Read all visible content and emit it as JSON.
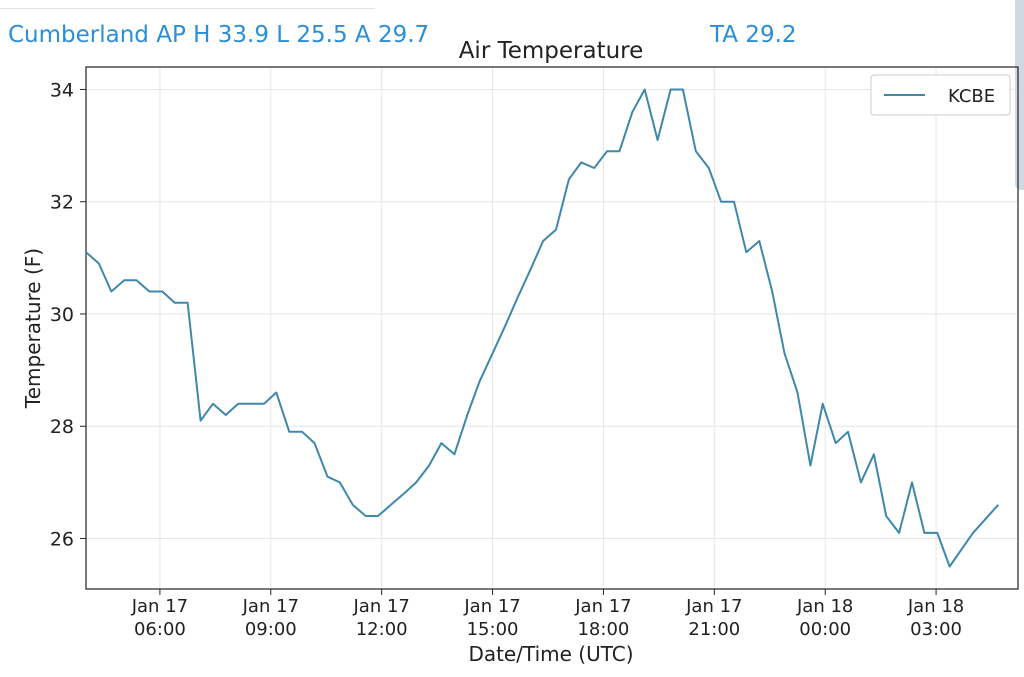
{
  "header": {
    "station_stats": "Cumberland AP H 33.9 L 25.5 A 29.7",
    "average_label": "TA 29.2"
  },
  "colors": {
    "header_text": "#2a8ed8",
    "series_line": "#3f88aa"
  },
  "chart_data": {
    "type": "line",
    "title": "Air Temperature",
    "xlabel": "Date/Time (UTC)",
    "ylabel": "Temperature (F)",
    "x_unit": "time (UTC)",
    "xlim": [
      "Jan 17 04:00",
      "Jan 18 05:13"
    ],
    "ylim": [
      25.1,
      34.4
    ],
    "yticks": [
      26,
      28,
      30,
      32,
      34
    ],
    "xticks": [
      {
        "t": "Jan 17 06:00",
        "line1": "Jan 17",
        "line2": "06:00"
      },
      {
        "t": "Jan 17 09:00",
        "line1": "Jan 17",
        "line2": "09:00"
      },
      {
        "t": "Jan 17 12:00",
        "line1": "Jan 17",
        "line2": "12:00"
      },
      {
        "t": "Jan 17 15:00",
        "line1": "Jan 17",
        "line2": "15:00"
      },
      {
        "t": "Jan 17 18:00",
        "line1": "Jan 17",
        "line2": "18:00"
      },
      {
        "t": "Jan 17 21:00",
        "line1": "Jan 17",
        "line2": "21:00"
      },
      {
        "t": "Jan 18 00:00",
        "line1": "Jan 18",
        "line2": "00:00"
      },
      {
        "t": "Jan 18 03:00",
        "line1": "Jan 18",
        "line2": "03:00"
      }
    ],
    "grid": true,
    "legend_position": "top-right",
    "series": [
      {
        "name": "KCBE",
        "color": "#3f88aa",
        "points": [
          [
            "Jan 17 04:00",
            31.1
          ],
          [
            "Jan 17 04:21",
            30.9
          ],
          [
            "Jan 17 04:41",
            30.4
          ],
          [
            "Jan 17 05:02",
            30.6
          ],
          [
            "Jan 17 05:22",
            30.6
          ],
          [
            "Jan 17 05:43",
            30.4
          ],
          [
            "Jan 17 06:04",
            30.4
          ],
          [
            "Jan 17 06:24",
            30.2
          ],
          [
            "Jan 17 06:45",
            30.2
          ],
          [
            "Jan 17 07:06",
            28.1
          ],
          [
            "Jan 17 07:26",
            28.4
          ],
          [
            "Jan 17 07:47",
            28.2
          ],
          [
            "Jan 17 08:07",
            28.4
          ],
          [
            "Jan 17 08:28",
            28.4
          ],
          [
            "Jan 17 08:49",
            28.4
          ],
          [
            "Jan 17 09:09",
            28.6
          ],
          [
            "Jan 17 09:30",
            27.9
          ],
          [
            "Jan 17 09:51",
            27.9
          ],
          [
            "Jan 17 10:11",
            27.7
          ],
          [
            "Jan 17 10:32",
            27.1
          ],
          [
            "Jan 17 10:52",
            27.0
          ],
          [
            "Jan 17 11:13",
            26.6
          ],
          [
            "Jan 17 11:34",
            26.4
          ],
          [
            "Jan 17 11:54",
            26.4
          ],
          [
            "Jan 17 12:15",
            26.6
          ],
          [
            "Jan 17 12:36",
            26.8
          ],
          [
            "Jan 17 12:56",
            27.0
          ],
          [
            "Jan 17 13:17",
            27.3
          ],
          [
            "Jan 17 13:37",
            27.7
          ],
          [
            "Jan 17 13:58",
            27.5
          ],
          [
            "Jan 17 14:19",
            28.2
          ],
          [
            "Jan 17 14:39",
            28.8
          ],
          [
            "Jan 17 15:00",
            29.3
          ],
          [
            "Jan 17 15:21",
            29.8
          ],
          [
            "Jan 17 15:41",
            30.3
          ],
          [
            "Jan 17 16:02",
            30.8
          ],
          [
            "Jan 17 16:22",
            31.3
          ],
          [
            "Jan 17 16:43",
            31.5
          ],
          [
            "Jan 17 17:04",
            32.4
          ],
          [
            "Jan 17 17:24",
            32.7
          ],
          [
            "Jan 17 17:45",
            32.6
          ],
          [
            "Jan 17 18:06",
            32.9
          ],
          [
            "Jan 17 18:26",
            32.9
          ],
          [
            "Jan 17 18:47",
            33.6
          ],
          [
            "Jan 17 19:07",
            34.0
          ],
          [
            "Jan 17 19:28",
            33.1
          ],
          [
            "Jan 17 19:49",
            34.0
          ],
          [
            "Jan 17 20:09",
            34.0
          ],
          [
            "Jan 17 20:30",
            32.9
          ],
          [
            "Jan 17 20:51",
            32.6
          ],
          [
            "Jan 17 21:11",
            32.0
          ],
          [
            "Jan 17 21:32",
            32.0
          ],
          [
            "Jan 17 21:52",
            31.1
          ],
          [
            "Jan 17 22:13",
            31.3
          ],
          [
            "Jan 17 22:34",
            30.4
          ],
          [
            "Jan 17 22:54",
            29.3
          ],
          [
            "Jan 17 23:15",
            28.6
          ],
          [
            "Jan 17 23:36",
            27.3
          ],
          [
            "Jan 17 23:56",
            28.4
          ],
          [
            "Jan 18 00:17",
            27.7
          ],
          [
            "Jan 18 00:37",
            27.9
          ],
          [
            "Jan 18 00:58",
            27.0
          ],
          [
            "Jan 18 01:19",
            27.5
          ],
          [
            "Jan 18 01:39",
            26.4
          ],
          [
            "Jan 18 02:00",
            26.1
          ],
          [
            "Jan 18 02:21",
            27.0
          ],
          [
            "Jan 18 02:41",
            26.1
          ],
          [
            "Jan 18 03:02",
            26.1
          ],
          [
            "Jan 18 03:22",
            25.5
          ],
          [
            "Jan 18 04:00",
            26.1
          ],
          [
            "Jan 18 04:41",
            26.6
          ]
        ]
      }
    ]
  }
}
